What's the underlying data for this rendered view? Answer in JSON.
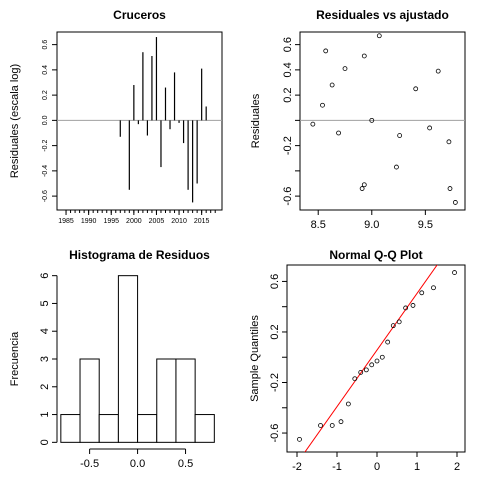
{
  "chart_data": [
    {
      "type": "stem",
      "title": "Cruceros",
      "ylabel": "Residuales (escala log)",
      "color": "#000000",
      "box": true,
      "hline": 0,
      "x": [
        1997,
        1999,
        2000,
        2001,
        2002,
        2003,
        2004,
        2005,
        2006,
        2007,
        2008,
        2009,
        2010,
        2011,
        2012,
        2013,
        2014,
        2015,
        2016
      ],
      "values": [
        -0.13,
        -0.55,
        0.28,
        -0.03,
        0.54,
        -0.12,
        0.51,
        0.66,
        -0.37,
        0.26,
        -0.07,
        0.38,
        -0.02,
        -0.18,
        -0.55,
        -0.65,
        -0.5,
        0.41,
        0.11
      ],
      "xlim": [
        1983,
        2019.5
      ],
      "ylim": [
        -0.71,
        0.7
      ],
      "xticks": [
        1985,
        1990,
        1995,
        2000,
        2005,
        2010,
        2015
      ],
      "xminorticks": [
        1985,
        1986,
        1987,
        1988,
        1989,
        1990,
        1991,
        1992,
        1993,
        1994,
        1995,
        1996,
        1997,
        1998,
        1999,
        2000,
        2001,
        2002,
        2003,
        2004,
        2005,
        2006,
        2007,
        2008,
        2009,
        2010,
        2011,
        2012,
        2013,
        2014,
        2015,
        2016,
        2017,
        2018
      ],
      "yticks": [
        -0.6,
        -0.4,
        -0.2,
        {
          "value": 0,
          "label": "0.0"
        },
        0.2,
        0.4,
        0.6
      ]
    },
    {
      "type": "scatter",
      "title": "Residuales vs ajustado",
      "ylabel": "Residuales",
      "color": "#000000",
      "box": true,
      "hline": 0,
      "x": [
        8.45,
        8.54,
        8.57,
        8.63,
        8.69,
        8.75,
        8.91,
        8.93,
        8.93,
        9.0,
        9.07,
        9.23,
        9.26,
        9.41,
        9.54,
        9.62,
        9.72,
        9.73,
        9.78
      ],
      "values": [
        -0.03,
        0.12,
        0.55,
        0.28,
        -0.1,
        0.41,
        -0.54,
        -0.51,
        0.51,
        0.0,
        0.67,
        -0.37,
        -0.12,
        0.25,
        -0.06,
        0.39,
        -0.17,
        -0.54,
        -0.65
      ],
      "xlim": [
        8.33,
        9.87
      ],
      "ylim": [
        -0.71,
        0.7
      ],
      "xticks": [
        8.5,
        {
          "value": 9,
          "label": "9.0"
        },
        9.5
      ],
      "yticks": [
        -0.6,
        {
          "value": -0.4,
          "label": null
        },
        -0.2,
        {
          "value": 0,
          "label": null
        },
        0.2,
        0.4,
        0.6
      ]
    },
    {
      "type": "histogram",
      "title": "Histograma de Residuos",
      "ylabel": "Frecuencia",
      "color": "#ffffff",
      "box": false,
      "bins": [
        -0.8,
        -0.6,
        -0.4,
        -0.2,
        0,
        0.2,
        0.4,
        0.6,
        0.8
      ],
      "values": [
        1,
        3,
        1,
        6,
        1,
        3,
        3,
        1
      ],
      "xlim": [
        -0.84,
        0.88
      ],
      "ylim": [
        -0.24,
        6.24
      ],
      "xticks": [
        -0.5,
        {
          "value": 0,
          "label": "0.0"
        },
        0.5
      ],
      "yticks": [
        0,
        1,
        2,
        3,
        4,
        5,
        6
      ]
    },
    {
      "type": "qq",
      "title": "Normal Q-Q Plot",
      "ylabel": "Sample Quantiles",
      "color": "#000000",
      "box": true,
      "x": [
        -1.938,
        -1.412,
        -1.119,
        -0.9,
        -0.716,
        -0.555,
        -0.407,
        -0.267,
        -0.132,
        0,
        0.132,
        0.267,
        0.407,
        0.555,
        0.716,
        0.9,
        1.119,
        1.412,
        1.938
      ],
      "values": [
        -0.65,
        -0.54,
        -0.54,
        -0.51,
        -0.37,
        -0.17,
        -0.12,
        -0.1,
        -0.06,
        -0.03,
        0.0,
        0.12,
        0.25,
        0.28,
        0.39,
        0.41,
        0.51,
        0.55,
        0.67
      ],
      "qqline": {
        "intercept": 0.057,
        "slope": 0.448,
        "color": "#ff0000"
      },
      "xlim": [
        -2.25,
        2.2
      ],
      "ylim": [
        -0.75,
        0.73
      ],
      "xticks": [
        -2,
        -1,
        0,
        1,
        2
      ],
      "yticks": [
        -0.6,
        {
          "value": -0.4,
          "label": null
        },
        -0.2,
        {
          "value": 0,
          "label": null
        },
        0.2,
        {
          "value": 0.4,
          "label": null
        },
        0.6
      ]
    }
  ]
}
